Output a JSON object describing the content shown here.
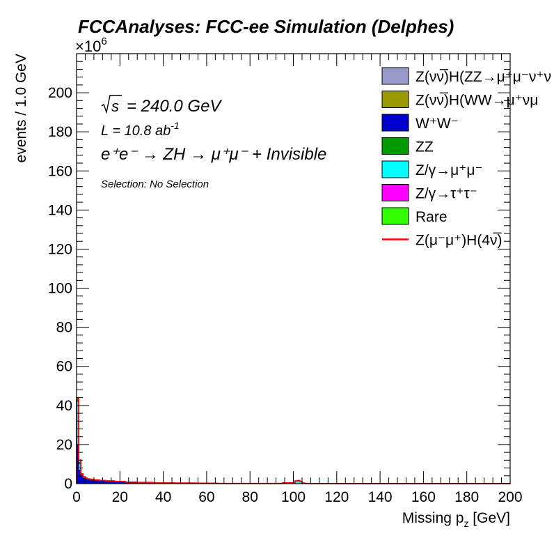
{
  "chart_data": {
    "type": "area",
    "title": "FCCAnalyses: FCC-ee Simulation (Delphes)",
    "xlabel_main": "Missing p",
    "xlabel_sub": "z",
    "xlabel_unit": " [GeV]",
    "ylabel": "events / 1.0 GeV",
    "y_multiplier": "×10",
    "y_multiplier_exp": "6",
    "xlim": [
      0,
      200
    ],
    "ylim": [
      0,
      220
    ],
    "x_ticks": [
      0,
      20,
      40,
      60,
      80,
      100,
      120,
      140,
      160,
      180,
      200
    ],
    "y_ticks": [
      0,
      20,
      40,
      60,
      80,
      100,
      120,
      140,
      160,
      180,
      200
    ],
    "x_tick_labels": [
      "0",
      "20",
      "40",
      "60",
      "80",
      "100",
      "120",
      "140",
      "160",
      "180",
      "200"
    ],
    "y_tick_labels": [
      "0",
      "20",
      "40",
      "60",
      "80",
      "100",
      "120",
      "140",
      "160",
      "180",
      "200"
    ],
    "grid": false,
    "legend_position": "top-right",
    "annotations": {
      "sqrt_s": "= 240.0 GeV",
      "lumi_L": "L = 10.8 ab",
      "lumi_exp": "-1",
      "process": "e⁺e⁻ → ZH → μ⁺μ⁻ + Invisible",
      "selection": "Selection: No Selection"
    },
    "x": [
      0.5,
      1.5,
      2.5,
      3.5,
      4.5,
      5.5,
      7,
      9,
      12,
      15,
      20,
      25,
      30,
      40,
      50,
      60,
      70,
      80,
      90,
      100,
      101.5,
      102.5,
      103.5,
      104.5,
      106,
      110,
      130,
      160,
      199.5
    ],
    "series": [
      {
        "name": "W⁺W⁻",
        "color": "#0000cc",
        "values": [
          20,
          7,
          4,
          2.8,
          2.3,
          2.0,
          1.8,
          1.6,
          1.4,
          1.2,
          0.9,
          0.6,
          0.5,
          0.3,
          0.2,
          0.1,
          0.05,
          0.05,
          0.02,
          0.02,
          0.05,
          0.05,
          0.05,
          0.02,
          0.02,
          0.01,
          0.01,
          0.01,
          0.01
        ]
      },
      {
        "name": "Z/γ→μ⁺μ⁻",
        "color": "#00ffff",
        "values": [
          22,
          3,
          0.5,
          0.3,
          0.2,
          0.2,
          0.2,
          0.1,
          0.1,
          0.1,
          0.05,
          0.05,
          0.05,
          0.02,
          0.02,
          0.02,
          0.02,
          0.02,
          0.1,
          0.3,
          1.2,
          1.4,
          0.8,
          0.2,
          0.05,
          0.02,
          0.01,
          0.01,
          0.01
        ]
      },
      {
        "name": "ZZ",
        "color": "#009900",
        "values": [
          1.5,
          0.8,
          0.4,
          0.3,
          0.2,
          0.2,
          0.15,
          0.1,
          0.1,
          0.1,
          0.05,
          0.05,
          0.05,
          0.02,
          0.02,
          0.02,
          0.01,
          0.01,
          0.01,
          0.01,
          0.01,
          0.01,
          0.01,
          0.01,
          0.01,
          0.01,
          0.01,
          0.01,
          0.01
        ]
      },
      {
        "name": "Rare",
        "color": "#33ff00",
        "values": [
          0.5,
          0.3,
          0.2,
          0.1,
          0.1,
          0.1,
          0.05,
          0.05,
          0.05,
          0.05,
          0.02,
          0.02,
          0.02,
          0.01,
          0.01,
          0.01,
          0.01,
          0.01,
          0.01,
          0.01,
          0.01,
          0.01,
          0.01,
          0.01,
          0.01,
          0.01,
          0.01,
          0.01,
          0.01
        ]
      }
    ],
    "legend": [
      {
        "label": "Z(νν̅)H(ZZ→μ⁺μ⁻ν⁺ν",
        "kind": "box",
        "color": "#9999cc"
      },
      {
        "label": "Z(νν̅)H(WW→μ⁺νμ",
        "kind": "box",
        "color": "#999900"
      },
      {
        "label": "W⁺W⁻",
        "kind": "box",
        "color": "#0000cc"
      },
      {
        "label": "ZZ",
        "kind": "box",
        "color": "#009900"
      },
      {
        "label": "Z/γ→μ⁺μ⁻",
        "kind": "box",
        "color": "#00ffff"
      },
      {
        "label": "Z/γ→τ⁺τ⁻",
        "kind": "box",
        "color": "#ff00ff"
      },
      {
        "label": "Rare",
        "kind": "box",
        "color": "#33ff00"
      },
      {
        "label": "Z(μ⁻μ⁺)H(4ν̅)",
        "kind": "line",
        "color": "#ff0000"
      }
    ],
    "signal": {
      "name": "Z(μ⁻μ⁺)H(4ν̅)",
      "color": "#ff0000",
      "values": [
        44,
        12,
        5,
        3.5,
        2.8,
        2.4,
        2.2,
        1.9,
        1.6,
        1.4,
        1.1,
        0.8,
        0.6,
        0.4,
        0.3,
        0.2,
        0.1,
        0.1,
        0.1,
        0.4,
        1.4,
        1.6,
        1.0,
        0.3,
        0.1,
        0.05,
        0.03,
        0.02,
        0.02
      ]
    }
  }
}
